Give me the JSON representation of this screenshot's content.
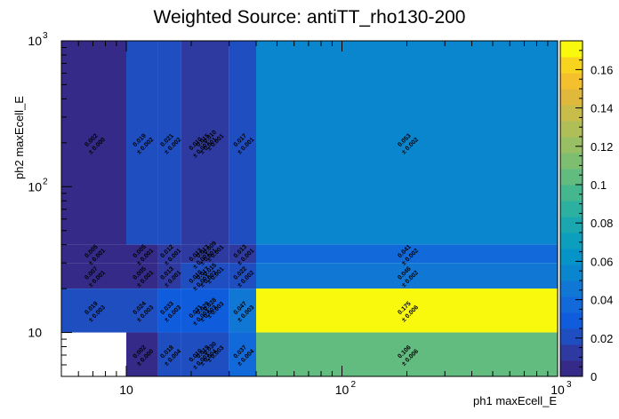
{
  "chart_data": {
    "type": "heatmap",
    "title": "Weighted Source: antiTT_rho130-200",
    "xlabel": "ph1 maxEcell_E",
    "ylabel": "ph2 maxEcell_E",
    "x_scale": "log",
    "y_scale": "log",
    "xlim": [
      5,
      1000
    ],
    "ylim": [
      5,
      1000
    ],
    "x_edges": [
      5,
      10,
      14,
      18,
      30,
      40,
      1000
    ],
    "y_edges": [
      5,
      10,
      20,
      30,
      40,
      1000
    ],
    "x_ticks": [
      {
        "base": "10",
        "exp": ""
      },
      {
        "base": "10",
        "exp": "2"
      },
      {
        "base": "10",
        "exp": "3"
      }
    ],
    "y_ticks": [
      {
        "base": "10",
        "exp": ""
      },
      {
        "base": "10",
        "exp": "2"
      },
      {
        "base": "10",
        "exp": "3"
      }
    ],
    "zlim": [
      0,
      0.175
    ],
    "z_ticks": [
      "0",
      "0.02",
      "0.04",
      "0.06",
      "0.08",
      "0.1",
      "0.12",
      "0.14",
      "0.16"
    ],
    "palette": [
      "#352a87",
      "#2f3aa0",
      "#1f4ec0",
      "#0f5cdd",
      "#1269d9",
      "#1177d5",
      "#0a86cf",
      "#0693c8",
      "#0b9ebd",
      "#1aa7b0",
      "#2cb0a0",
      "#45b78f",
      "#62bb7f",
      "#7ebe70",
      "#98bf63",
      "#b0be58",
      "#c8bc4b",
      "#e0b93c",
      "#f5c02d",
      "#f9d41f",
      "#f9f90e"
    ],
    "cells": [
      {
        "x": 0,
        "y": 4,
        "v": 0.002,
        "e": 0.0
      },
      {
        "x": 1,
        "y": 4,
        "v": 0.019,
        "e": 0.002
      },
      {
        "x": 2,
        "y": 4,
        "v": 0.021,
        "e": 0.002
      },
      {
        "x": 3,
        "y": 4,
        "v": 0.015,
        "e": 0.001
      },
      {
        "x": 4,
        "y": 4,
        "v": 0.017,
        "e": 0.001
      },
      {
        "x": 5,
        "y": 4,
        "v": 0.053,
        "e": 0.002
      },
      {
        "x": 0,
        "y": 3,
        "v": 0.005,
        "e": 0.001
      },
      {
        "x": 1,
        "y": 3,
        "v": 0.005,
        "e": 0.001
      },
      {
        "x": 2,
        "y": 3,
        "v": 0.012,
        "e": 0.001
      },
      {
        "x": 3,
        "y": 3,
        "v": 0.013,
        "e": 0.001
      },
      {
        "x": 4,
        "y": 3,
        "v": 0.013,
        "e": 0.001
      },
      {
        "x": 5,
        "y": 3,
        "v": 0.041,
        "e": 0.002
      },
      {
        "x": 0,
        "y": 2,
        "v": 0.007,
        "e": 0.001
      },
      {
        "x": 1,
        "y": 2,
        "v": 0.005,
        "e": 0.001
      },
      {
        "x": 2,
        "y": 2,
        "v": 0.013,
        "e": 0.001
      },
      {
        "x": 3,
        "y": 2,
        "v": 0.017,
        "e": 0.002
      },
      {
        "x": 4,
        "y": 2,
        "v": 0.022,
        "e": 0.002
      },
      {
        "x": 5,
        "y": 2,
        "v": 0.046,
        "e": 0.002
      },
      {
        "x": 0,
        "y": 1,
        "v": 0.019,
        "e": 0.003
      },
      {
        "x": 1,
        "y": 1,
        "v": 0.024,
        "e": 0.003
      },
      {
        "x": 2,
        "y": 1,
        "v": 0.033,
        "e": 0.003
      },
      {
        "x": 3,
        "y": 1,
        "v": 0.029,
        "e": 0.003
      },
      {
        "x": 4,
        "y": 1,
        "v": 0.047,
        "e": 0.003
      },
      {
        "x": 5,
        "y": 1,
        "v": 0.175,
        "e": 0.006
      },
      {
        "x": 1,
        "y": 0,
        "v": 0.002,
        "e": 0.0
      },
      {
        "x": 2,
        "y": 0,
        "v": 0.018,
        "e": 0.004
      },
      {
        "x": 3,
        "y": 0,
        "v": 0.019,
        "e": 0.004
      },
      {
        "x": 4,
        "y": 0,
        "v": 0.037,
        "e": 0.004
      },
      {
        "x": 5,
        "y": 0,
        "v": 0.106,
        "e": 0.006
      }
    ],
    "extra_labels": [
      {
        "x": 3,
        "y": 4,
        "v": 0.01,
        "e": 0.001
      },
      {
        "x": 3,
        "y": 4,
        "v": 0.01,
        "e": 0.001
      },
      {
        "x": 3,
        "y": 3,
        "v": 0.012,
        "e": 0.001
      },
      {
        "x": 3,
        "y": 3,
        "v": 0.009,
        "e": 0.001
      },
      {
        "x": 3,
        "y": 2,
        "v": 0.01,
        "e": 0.001
      },
      {
        "x": 3,
        "y": 2,
        "v": 0.015,
        "e": 0.001
      },
      {
        "x": 3,
        "y": 1,
        "v": 0.031,
        "e": 0.003
      },
      {
        "x": 3,
        "y": 1,
        "v": 0.028,
        "e": 0.003
      },
      {
        "x": 3,
        "y": 0,
        "v": 0.01,
        "e": 0.003
      },
      {
        "x": 3,
        "y": 0,
        "v": 0.03,
        "e": 0.003
      }
    ]
  }
}
